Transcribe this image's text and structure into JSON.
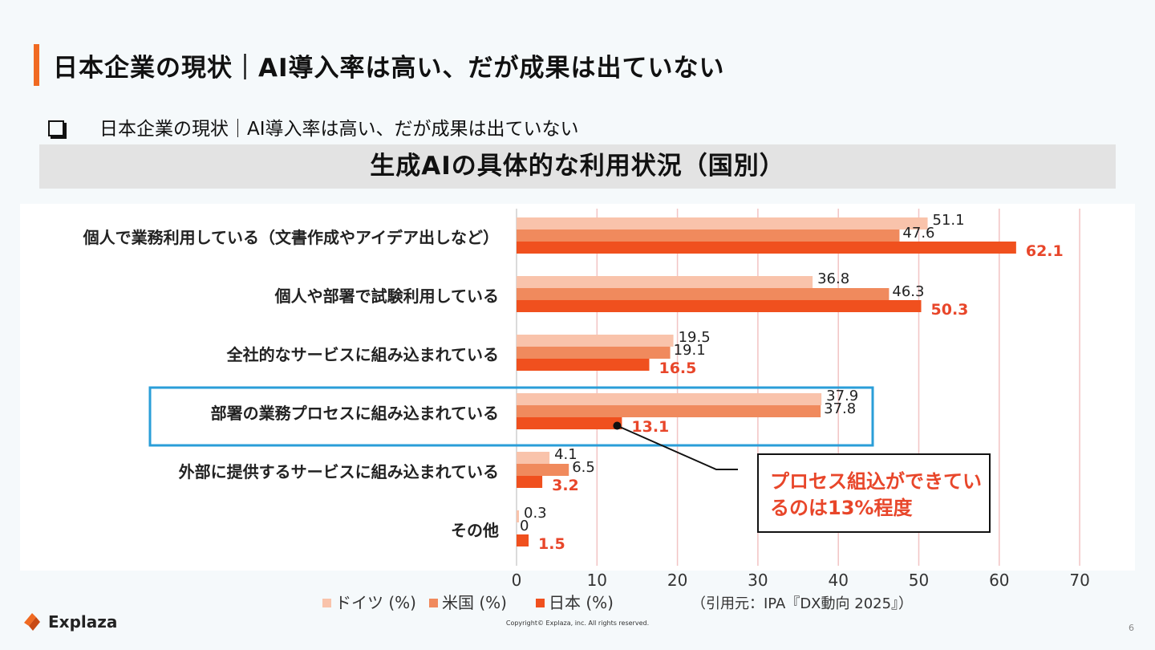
{
  "header": {
    "title": "日本企業の現状｜AI導入率は高い、だが成果は出ていない"
  },
  "bullet": {
    "text": "日本企業の現状｜AI導入率は高い、だが成果は出ていない"
  },
  "chart_data": {
    "type": "bar",
    "orientation": "horizontal",
    "title": "生成AIの具体的な利用状況（国別）",
    "categories": [
      "個人で業務利用している（文書作成やアイデア出しなど）",
      "個人や部署で試験利用している",
      "全社的なサービスに組み込まれている",
      "部署の業務プロセスに組み込まれている",
      "外部に提供するサービスに組み込まれている",
      "その他"
    ],
    "series": [
      {
        "name": "ドイツ (%)",
        "color": "#f9c3ab",
        "values": [
          51.1,
          36.8,
          19.5,
          37.9,
          4.1,
          0.3
        ],
        "labels": [
          "51.1",
          "36.8",
          "19.5",
          "37.9",
          "4.1",
          "0.3"
        ]
      },
      {
        "name": "米国 (%)",
        "color": "#f08a5d",
        "values": [
          47.6,
          46.3,
          19.1,
          37.8,
          6.5,
          0
        ],
        "labels": [
          "47.6",
          "46.3",
          "19.1",
          "37.8",
          "6.5",
          "0"
        ]
      },
      {
        "name": "日本 (%)",
        "color": "#f0501e",
        "values": [
          62.1,
          50.3,
          16.5,
          13.1,
          3.2,
          1.5
        ],
        "labels": [
          "62.1",
          "50.3",
          "16.5",
          "13.1",
          "3.2",
          "1.5"
        ]
      }
    ],
    "xlim": [
      0,
      70
    ],
    "xticks": [
      "0",
      "10",
      "20",
      "30",
      "40",
      "50",
      "60",
      "70"
    ],
    "highlight_category_index": 3,
    "highlight_color": "#2a9ed8",
    "label_highlight_color": "#e8462a",
    "grid_color": "#f2c4c4",
    "callout": {
      "lines": [
        "プロセス組込ができてい",
        "るのは13%程度"
      ],
      "color": "#e8462a"
    },
    "source": "（引用元：IPA『DX動向 2025』）"
  },
  "footer": {
    "brand": "Explaza",
    "copyright": "Copyright© Explaza, inc. All rights reserved.",
    "page": "6"
  }
}
